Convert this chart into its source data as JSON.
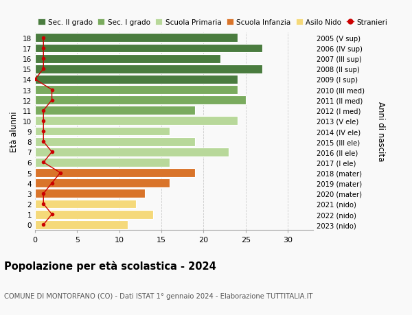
{
  "ages": [
    18,
    17,
    16,
    15,
    14,
    13,
    12,
    11,
    10,
    9,
    8,
    7,
    6,
    5,
    4,
    3,
    2,
    1,
    0
  ],
  "bar_values": [
    24,
    27,
    22,
    27,
    24,
    24,
    25,
    19,
    24,
    16,
    19,
    23,
    16,
    19,
    16,
    13,
    12,
    14,
    11
  ],
  "bar_colors": [
    "#4a7c3f",
    "#4a7c3f",
    "#4a7c3f",
    "#4a7c3f",
    "#4a7c3f",
    "#7aab5e",
    "#7aab5e",
    "#7aab5e",
    "#b8d89a",
    "#b8d89a",
    "#b8d89a",
    "#b8d89a",
    "#b8d89a",
    "#d9742a",
    "#d9742a",
    "#d9742a",
    "#f5d97a",
    "#f5d97a",
    "#f5d97a"
  ],
  "stranieri_values": [
    1,
    1,
    1,
    1,
    0,
    2,
    2,
    1,
    1,
    1,
    1,
    2,
    1,
    3,
    2,
    1,
    1,
    2,
    1
  ],
  "right_labels": [
    "2005 (V sup)",
    "2006 (IV sup)",
    "2007 (III sup)",
    "2008 (II sup)",
    "2009 (I sup)",
    "2010 (III med)",
    "2011 (II med)",
    "2012 (I med)",
    "2013 (V ele)",
    "2014 (IV ele)",
    "2015 (III ele)",
    "2016 (II ele)",
    "2017 (I ele)",
    "2018 (mater)",
    "2019 (mater)",
    "2020 (mater)",
    "2021 (nido)",
    "2022 (nido)",
    "2023 (nido)"
  ],
  "legend_labels": [
    "Sec. II grado",
    "Sec. I grado",
    "Scuola Primaria",
    "Scuola Infanzia",
    "Asilo Nido",
    "Stranieri"
  ],
  "legend_colors": [
    "#4a7c3f",
    "#7aab5e",
    "#b8d89a",
    "#d9742a",
    "#f5d97a",
    "#cc0000"
  ],
  "ylabel": "Età alunni",
  "ylabel_right": "Anni di nascita",
  "title": "Popolazione per età scolastica - 2024",
  "subtitle": "COMUNE DI MONTORFANO (CO) - Dati ISTAT 1° gennaio 2024 - Elaborazione TUTTITALIA.IT",
  "xlim": [
    0,
    33
  ],
  "background_color": "#f9f9f9",
  "bar_edge_color": "white",
  "grid_color": "#cccccc",
  "stranieri_color": "#cc0000"
}
